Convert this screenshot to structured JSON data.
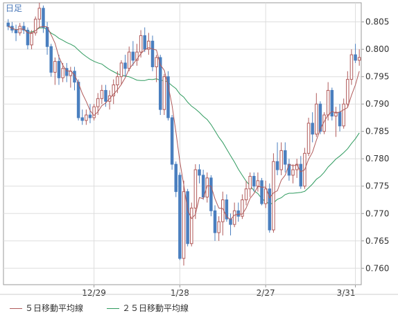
{
  "period_label": "日足",
  "legend": [
    {
      "label": "５日移動平均線",
      "color": "#b05a5a"
    },
    {
      "label": "２５日移動平均線",
      "color": "#2e9a5e"
    }
  ],
  "colors": {
    "up": "#b05a5a",
    "down": "#4a7fbf",
    "ma5": "#b05a5a",
    "ma25": "#2e9a5e",
    "grid": "#dddddd",
    "axis": "#999999"
  },
  "chart_data": {
    "type": "candlestick",
    "title": "",
    "xlabel": "",
    "ylabel": "",
    "ylim": [
      0.757,
      0.8085
    ],
    "y_ticks": [
      "0.805",
      "0.800",
      "0.795",
      "0.790",
      "0.785",
      "0.780",
      "0.775",
      "0.770",
      "0.765",
      "0.760"
    ],
    "x_ticks": [
      {
        "label": "12/29",
        "index": 22
      },
      {
        "label": "1/28",
        "index": 44
      },
      {
        "label": "2/27",
        "index": 66
      },
      {
        "label": "3/31",
        "index": 89
      }
    ],
    "grid": true,
    "legend_position": "bottom-left",
    "candles": [
      [
        0.8048,
        0.8055,
        0.8035,
        0.8042
      ],
      [
        0.8042,
        0.805,
        0.803,
        0.8035
      ],
      [
        0.8035,
        0.8045,
        0.8015,
        0.803
      ],
      [
        0.803,
        0.8048,
        0.8025,
        0.8042
      ],
      [
        0.8042,
        0.805,
        0.8028,
        0.8035
      ],
      [
        0.8035,
        0.804,
        0.8,
        0.8008
      ],
      [
        0.8008,
        0.8035,
        0.8,
        0.803
      ],
      [
        0.803,
        0.806,
        0.8025,
        0.8055
      ],
      [
        0.8055,
        0.8085,
        0.804,
        0.8075
      ],
      [
        0.8075,
        0.808,
        0.803,
        0.804
      ],
      [
        0.804,
        0.805,
        0.799,
        0.8005
      ],
      [
        0.8005,
        0.801,
        0.795,
        0.7958
      ],
      [
        0.7958,
        0.7985,
        0.7935,
        0.7978
      ],
      [
        0.7978,
        0.799,
        0.7935,
        0.7948
      ],
      [
        0.7948,
        0.7975,
        0.794,
        0.7965
      ],
      [
        0.7965,
        0.7975,
        0.794,
        0.7952
      ],
      [
        0.7952,
        0.7968,
        0.793,
        0.796
      ],
      [
        0.796,
        0.7968,
        0.7925,
        0.794
      ],
      [
        0.794,
        0.7945,
        0.787,
        0.7875
      ],
      [
        0.7875,
        0.789,
        0.7862,
        0.787
      ],
      [
        0.787,
        0.789,
        0.7862,
        0.788
      ],
      [
        0.788,
        0.79,
        0.7865,
        0.7875
      ],
      [
        0.7875,
        0.79,
        0.787,
        0.7895
      ],
      [
        0.7895,
        0.792,
        0.788,
        0.791
      ],
      [
        0.791,
        0.7935,
        0.79,
        0.7925
      ],
      [
        0.7925,
        0.7935,
        0.7895,
        0.7905
      ],
      [
        0.7905,
        0.7925,
        0.789,
        0.7915
      ],
      [
        0.7915,
        0.7945,
        0.79,
        0.7935
      ],
      [
        0.7935,
        0.796,
        0.792,
        0.795
      ],
      [
        0.795,
        0.798,
        0.7935,
        0.7975
      ],
      [
        0.7975,
        0.799,
        0.795,
        0.7965
      ],
      [
        0.7965,
        0.8005,
        0.796,
        0.7995
      ],
      [
        0.7995,
        0.8015,
        0.797,
        0.798
      ],
      [
        0.798,
        0.801,
        0.797,
        0.7995
      ],
      [
        0.7995,
        0.8035,
        0.7985,
        0.8025
      ],
      [
        0.8025,
        0.804,
        0.7995,
        0.8
      ],
      [
        0.8,
        0.803,
        0.799,
        0.8015
      ],
      [
        0.8015,
        0.8025,
        0.796,
        0.7968
      ],
      [
        0.7968,
        0.799,
        0.794,
        0.7985
      ],
      [
        0.7985,
        0.799,
        0.788,
        0.789
      ],
      [
        0.789,
        0.7955,
        0.788,
        0.795
      ],
      [
        0.795,
        0.796,
        0.787,
        0.7875
      ],
      [
        0.7875,
        0.788,
        0.778,
        0.779
      ],
      [
        0.779,
        0.7795,
        0.773,
        0.774
      ],
      [
        0.777,
        0.7775,
        0.7615,
        0.7618
      ],
      [
        0.7618,
        0.776,
        0.7605,
        0.774
      ],
      [
        0.774,
        0.7745,
        0.764,
        0.7645
      ],
      [
        0.7645,
        0.772,
        0.764,
        0.771
      ],
      [
        0.771,
        0.779,
        0.769,
        0.778
      ],
      [
        0.778,
        0.779,
        0.7755,
        0.777
      ],
      [
        0.777,
        0.778,
        0.7725,
        0.773
      ],
      [
        0.773,
        0.7775,
        0.772,
        0.7765
      ],
      [
        0.7765,
        0.777,
        0.7695,
        0.7705
      ],
      [
        0.7705,
        0.7715,
        0.765,
        0.7665
      ],
      [
        0.7665,
        0.7695,
        0.765,
        0.7685
      ],
      [
        0.7685,
        0.774,
        0.766,
        0.7725
      ],
      [
        0.7725,
        0.7735,
        0.7685,
        0.769
      ],
      [
        0.769,
        0.77,
        0.766,
        0.768
      ],
      [
        0.768,
        0.772,
        0.7675,
        0.7705
      ],
      [
        0.7705,
        0.772,
        0.7685,
        0.7695
      ],
      [
        0.7695,
        0.7735,
        0.769,
        0.7725
      ],
      [
        0.7725,
        0.776,
        0.7715,
        0.7745
      ],
      [
        0.7745,
        0.7775,
        0.773,
        0.7768
      ],
      [
        0.7768,
        0.7775,
        0.774,
        0.775
      ],
      [
        0.775,
        0.7775,
        0.774,
        0.776
      ],
      [
        0.776,
        0.7765,
        0.7715,
        0.7718
      ],
      [
        0.7718,
        0.776,
        0.771,
        0.7745
      ],
      [
        0.7745,
        0.7755,
        0.7665,
        0.767
      ],
      [
        0.767,
        0.781,
        0.7665,
        0.7795
      ],
      [
        0.7795,
        0.783,
        0.777,
        0.778
      ],
      [
        0.778,
        0.783,
        0.777,
        0.7815
      ],
      [
        0.7815,
        0.783,
        0.7775,
        0.779
      ],
      [
        0.779,
        0.78,
        0.776,
        0.777
      ],
      [
        0.777,
        0.779,
        0.7755,
        0.778
      ],
      [
        0.778,
        0.78,
        0.7765,
        0.779
      ],
      [
        0.779,
        0.7805,
        0.7745,
        0.775
      ],
      [
        0.775,
        0.782,
        0.7745,
        0.781
      ],
      [
        0.781,
        0.7875,
        0.7805,
        0.7865
      ],
      [
        0.7865,
        0.7885,
        0.783,
        0.7845
      ],
      [
        0.7845,
        0.792,
        0.784,
        0.79
      ],
      [
        0.79,
        0.7905,
        0.7845,
        0.785
      ],
      [
        0.785,
        0.7885,
        0.7845,
        0.788
      ],
      [
        0.788,
        0.794,
        0.787,
        0.7925
      ],
      [
        0.7925,
        0.793,
        0.787,
        0.7878
      ],
      [
        0.7878,
        0.7895,
        0.784,
        0.7885
      ],
      [
        0.7885,
        0.79,
        0.785,
        0.786
      ],
      [
        0.786,
        0.791,
        0.7855,
        0.79
      ],
      [
        0.79,
        0.796,
        0.7895,
        0.7945
      ],
      [
        0.7945,
        0.8,
        0.7935,
        0.799
      ],
      [
        0.799,
        0.801,
        0.7975,
        0.798
      ],
      [
        0.798,
        0.8,
        0.797,
        0.7985
      ]
    ]
  }
}
